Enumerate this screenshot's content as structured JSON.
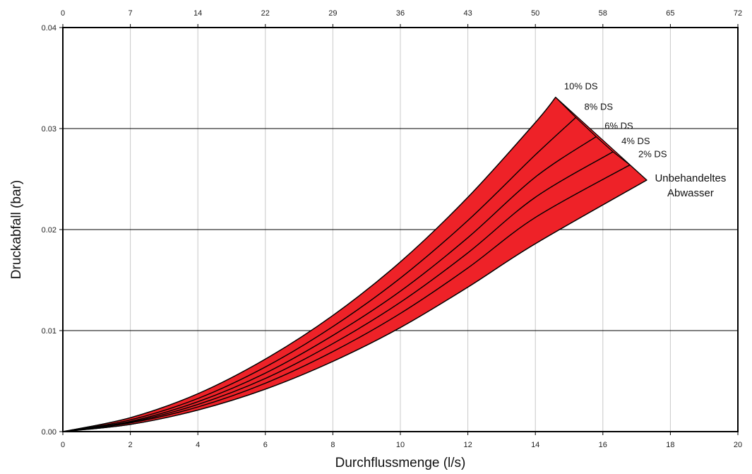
{
  "chart_data": {
    "type": "area",
    "xlabel": "Durchflussmenge (l/s)",
    "ylabel": "Druckabfall (bar)",
    "xlim": [
      0,
      20
    ],
    "ylim": [
      0,
      0.04
    ],
    "x_ticks": [
      "0",
      "2",
      "4",
      "6",
      "8",
      "10",
      "12",
      "14",
      "16",
      "18",
      "20"
    ],
    "y_ticks": [
      "0.00",
      "0.01",
      "0.02",
      "0.03",
      "0.04"
    ],
    "top_ticks": [
      "0",
      "7",
      "14",
      "22",
      "29",
      "36",
      "43",
      "50",
      "58",
      "65",
      "72"
    ],
    "grid": true,
    "fill_color": "#ee2228",
    "line_color": "#000000",
    "series": [
      {
        "name": "10% DS",
        "x": [
          0,
          2,
          4,
          6,
          8,
          10,
          12,
          14,
          14.6
        ],
        "y": [
          0,
          0.00138,
          0.00375,
          0.00718,
          0.0115,
          0.0168,
          0.0232,
          0.0306,
          0.0331
        ]
      },
      {
        "name": "8% DS",
        "x": [
          0,
          2,
          4,
          6,
          8,
          10,
          12,
          14,
          15.2
        ],
        "y": [
          0,
          0.00116,
          0.00328,
          0.0064,
          0.0104,
          0.0152,
          0.0209,
          0.0274,
          0.0311
        ]
      },
      {
        "name": "6% DS",
        "x": [
          0,
          2,
          4,
          6,
          8,
          10,
          12,
          14,
          15.8
        ],
        "y": [
          0,
          0.00101,
          0.00296,
          0.00579,
          0.00952,
          0.0139,
          0.0192,
          0.0252,
          0.0292
        ]
      },
      {
        "name": "4% DS",
        "x": [
          0,
          2,
          4,
          6,
          8,
          10,
          12,
          14,
          16.3
        ],
        "y": [
          0,
          0.00093,
          0.00269,
          0.00526,
          0.00871,
          0.0128,
          0.0177,
          0.0232,
          0.0277
        ]
      },
      {
        "name": "2% DS",
        "x": [
          0,
          2,
          4,
          6,
          8,
          10,
          12,
          14,
          16.8
        ],
        "y": [
          0,
          0.00086,
          0.00244,
          0.00479,
          0.00792,
          0.0117,
          0.0162,
          0.0212,
          0.0264
        ]
      },
      {
        "name": "Unbehandeltes Abwasser",
        "x": [
          0,
          2,
          4,
          6,
          8,
          10,
          12,
          14,
          17.3
        ],
        "y": [
          0,
          0.00071,
          0.00213,
          0.0042,
          0.00695,
          0.0103,
          0.0143,
          0.0186,
          0.0249
        ]
      }
    ],
    "labels": [
      {
        "text": "10% DS",
        "series": "10% DS"
      },
      {
        "text": "8% DS",
        "series": "8% DS"
      },
      {
        "text": "6% DS",
        "series": "6% DS"
      },
      {
        "text": "4% DS",
        "series": "4% DS"
      },
      {
        "text": "2% DS",
        "series": "2% DS"
      },
      {
        "text_lines": [
          "Unbehandeltes",
          "Abwasser"
        ],
        "series": "Unbehandeltes Abwasser"
      }
    ]
  }
}
